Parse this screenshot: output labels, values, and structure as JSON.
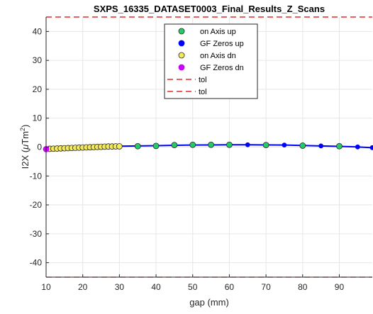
{
  "chart_data": {
    "type": "line",
    "title": "SXPS_16335_DATASET0003_Final_Results_Z_Scans",
    "xlabel": "gap (mm)",
    "ylabel_main": "I2X (",
    "ylabel_mu": "μ",
    "ylabel_unit": "Tm",
    "ylabel_sup": "2",
    "ylabel_close": ")",
    "xlim": [
      10,
      99
    ],
    "ylim": [
      -45,
      45
    ],
    "xticks": [
      10,
      20,
      30,
      40,
      50,
      60,
      70,
      80,
      90
    ],
    "yticks": [
      -40,
      -30,
      -20,
      -10,
      0,
      10,
      20,
      30,
      40
    ],
    "grid": true,
    "legend_position": "top-center",
    "colors": {
      "on_axis_up": "#22cc66",
      "gf_zeros_up": "#0000ff",
      "on_axis_dn": "#f2ea5a",
      "gf_zeros_dn": "#cc00ff",
      "tol": "#dd0000",
      "grid": "#e6e6e6",
      "axis": "#262626"
    },
    "series": [
      {
        "name": "on Axis up",
        "marker": "circle",
        "line": false,
        "x": [
          35,
          40,
          45,
          50,
          55,
          60,
          70,
          80,
          90
        ],
        "y": [
          0.3,
          0.4,
          0.7,
          0.8,
          0.8,
          0.8,
          0.7,
          0.5,
          0.3
        ]
      },
      {
        "name": "GF Zeros up",
        "marker": "dot",
        "line": true,
        "x": [
          10,
          12,
          14,
          16,
          18,
          20,
          22,
          24,
          26,
          28,
          30,
          35,
          40,
          45,
          50,
          55,
          60,
          65,
          70,
          75,
          80,
          85,
          90,
          95,
          99
        ],
        "y": [
          -0.6,
          -0.5,
          -0.4,
          -0.3,
          -0.2,
          -0.1,
          0.0,
          0.1,
          0.2,
          0.25,
          0.3,
          0.4,
          0.5,
          0.6,
          0.7,
          0.75,
          0.8,
          0.8,
          0.75,
          0.7,
          0.55,
          0.4,
          0.25,
          0.05,
          -0.2
        ]
      },
      {
        "name": "on Axis dn",
        "marker": "circle",
        "line": false,
        "x": [
          11,
          12,
          13,
          14,
          15,
          16,
          17,
          18,
          19,
          20,
          21,
          22,
          23,
          24,
          25,
          26,
          27,
          28,
          29,
          30
        ],
        "y": [
          -0.6,
          -0.55,
          -0.5,
          -0.45,
          -0.4,
          -0.35,
          -0.3,
          -0.25,
          -0.2,
          -0.15,
          -0.1,
          -0.05,
          0.0,
          0.05,
          0.1,
          0.15,
          0.2,
          0.2,
          0.25,
          0.25
        ]
      },
      {
        "name": "GF Zeros dn",
        "marker": "circle",
        "line": false,
        "x": [
          10
        ],
        "y": [
          -0.7
        ]
      },
      {
        "name": "tol",
        "marker": "none",
        "line": "dashed",
        "x": [
          10,
          99
        ],
        "y": [
          45,
          45
        ]
      },
      {
        "name": "tol",
        "marker": "none",
        "line": "dashed",
        "x": [
          10,
          99
        ],
        "y": [
          -45,
          -45
        ]
      }
    ]
  }
}
